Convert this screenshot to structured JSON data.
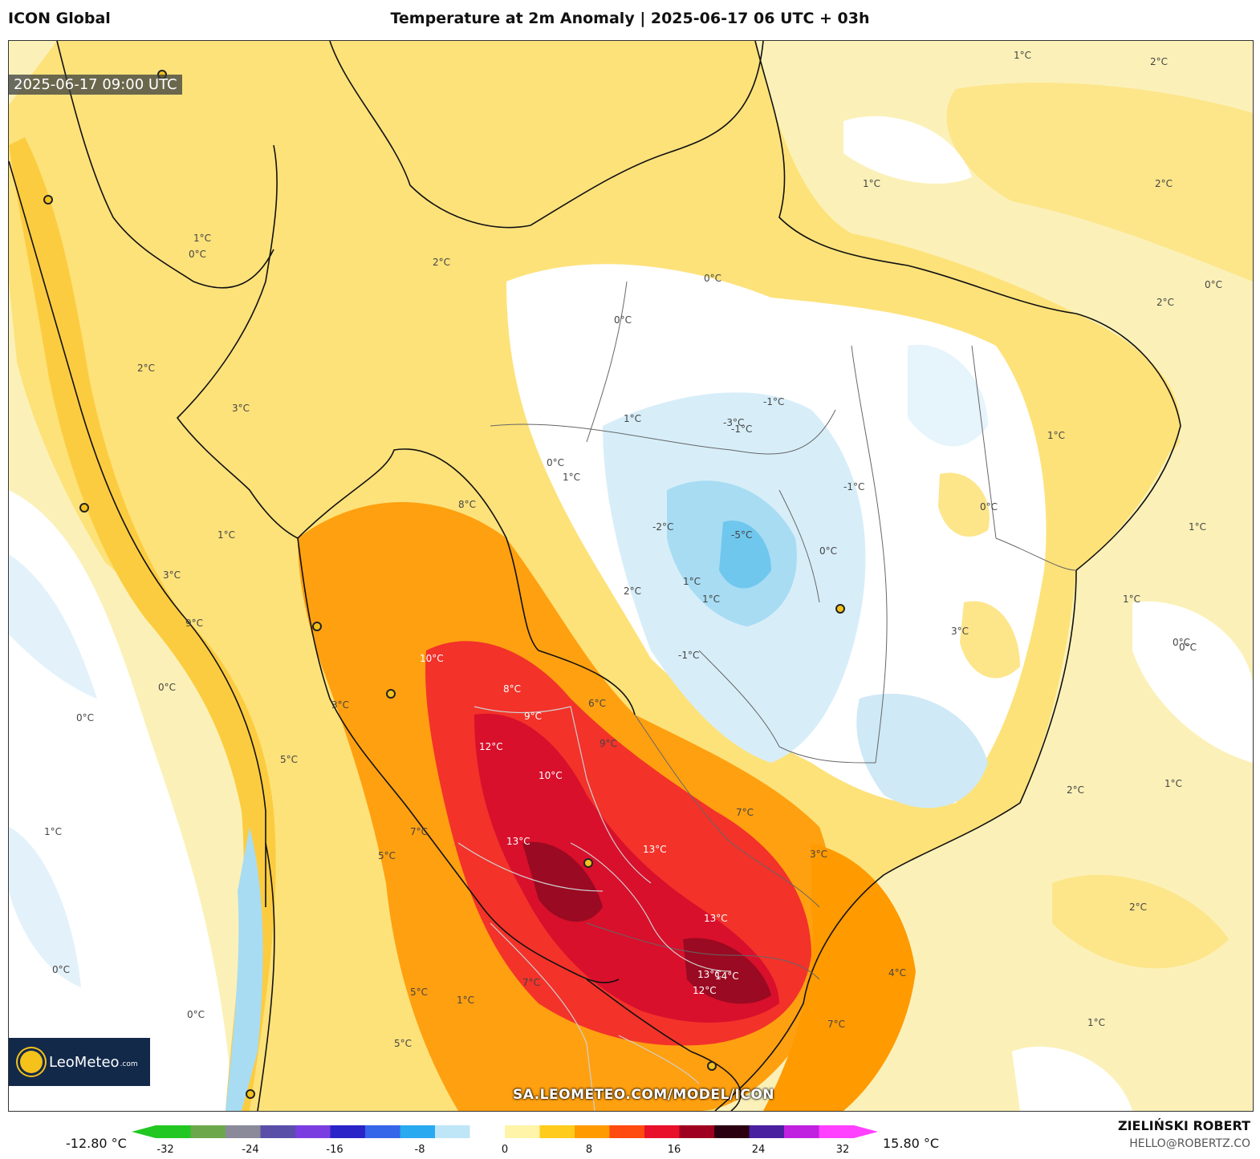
{
  "header": {
    "model": "ICON Global",
    "title": "Temperature at 2m Anomaly | 2025-06-17 06 UTC + 03h"
  },
  "map": {
    "valid_time": "2025-06-17 09:00 UTC",
    "watermark": "SA.LEOMETEO.COM/MODEL/ICON",
    "logo_brand": "LeoMeteo",
    "logo_domain": ".com",
    "contour_labels": [
      "1°C",
      "2°C",
      "0°C",
      "3°C",
      "-1°C",
      "-2°C",
      "-3°C",
      "-5°C",
      "4°C",
      "5°C",
      "6°C",
      "7°C",
      "8°C",
      "9°C",
      "10°C",
      "12°C",
      "13°C",
      "14°C"
    ]
  },
  "colorbar": {
    "min_label": "-12.80 °C",
    "max_label": "15.80 °C",
    "ticks": [
      "-32",
      "-24",
      "-16",
      "-8",
      "0",
      "8",
      "16",
      "24",
      "32"
    ],
    "colors": [
      "#22c722",
      "#6ca84b",
      "#8a8a9a",
      "#5a4fa8",
      "#7a3de0",
      "#2a24c8",
      "#3565e8",
      "#29a9f0",
      "#bfe6f7",
      "#ffffff",
      "#fff4a8",
      "#ffcc1e",
      "#ff9a00",
      "#ff4a10",
      "#e8102a",
      "#a00020",
      "#2a0010",
      "#4a1fa0",
      "#c020e0",
      "#ff40ff"
    ]
  },
  "author": {
    "name": "ZIELIŃSKI ROBERT",
    "email": "HELLO@ROBERTZ.CO"
  }
}
